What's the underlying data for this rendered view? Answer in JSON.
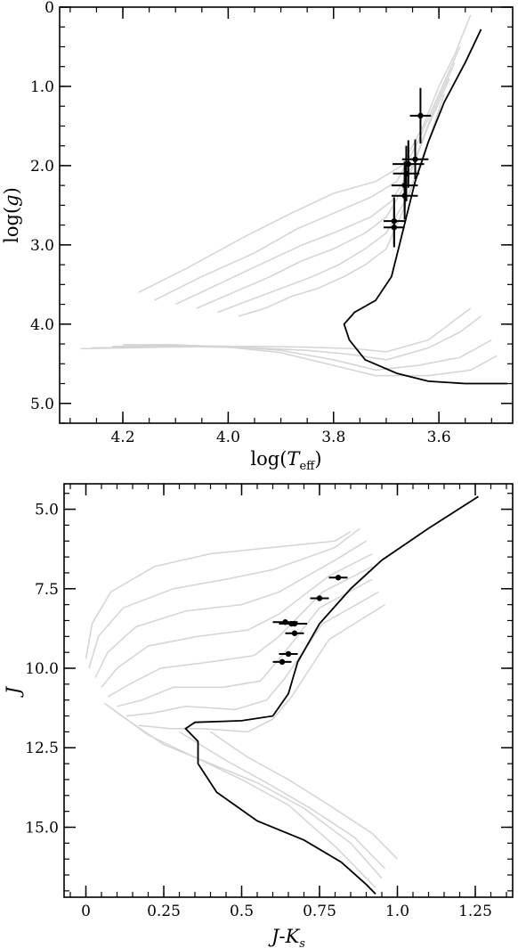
{
  "chart_data": [
    {
      "type": "line",
      "panel": "top",
      "xlabel": "log(Teff)",
      "xlabel_parts": {
        "prefix": "log(",
        "T": "T",
        "sub": "eff",
        "suffix": ")"
      },
      "ylabel": "log(g)",
      "ylabel_parts": {
        "prefix": "log(",
        "g": "g",
        "suffix": ")"
      },
      "xlim": [
        4.32,
        3.46
      ],
      "ylim": [
        5.25,
        0.0
      ],
      "x_ticks": [
        4.2,
        4.0,
        3.8,
        3.6
      ],
      "x_tick_labels": [
        "4.2",
        "4.0",
        "3.8",
        "3.6"
      ],
      "y_ticks": [
        0,
        1.0,
        2.0,
        3.0,
        4.0,
        5.0
      ],
      "y_tick_labels": [
        "0",
        "1.0",
        "2.0",
        "3.0",
        "4.0",
        "5.0"
      ],
      "grey_color": "#d4d4d4",
      "highlight_color": "#000000",
      "grey_isochrones": [
        [
          [
            4.28,
            4.31
          ],
          [
            4.12,
            4.29
          ],
          [
            3.95,
            4.28
          ],
          [
            3.85,
            4.29
          ],
          [
            3.76,
            4.31
          ],
          [
            3.7,
            4.35
          ],
          [
            3.62,
            4.2
          ],
          [
            3.58,
            4.0
          ],
          [
            3.54,
            3.8
          ]
        ],
        [
          [
            4.26,
            4.3
          ],
          [
            4.1,
            4.28
          ],
          [
            3.95,
            4.3
          ],
          [
            3.85,
            4.33
          ],
          [
            3.77,
            4.38
          ],
          [
            3.7,
            4.45
          ],
          [
            3.62,
            4.3
          ],
          [
            3.56,
            4.1
          ],
          [
            3.52,
            3.9
          ]
        ],
        [
          [
            4.22,
            4.28
          ],
          [
            4.1,
            4.27
          ],
          [
            4.0,
            4.28
          ],
          [
            3.9,
            4.33
          ],
          [
            3.8,
            4.45
          ],
          [
            3.72,
            4.58
          ],
          [
            3.64,
            4.52
          ],
          [
            3.56,
            4.42
          ],
          [
            3.5,
            4.2
          ]
        ],
        [
          [
            4.2,
            4.26
          ],
          [
            4.1,
            4.26
          ],
          [
            4.0,
            4.29
          ],
          [
            3.9,
            4.36
          ],
          [
            3.8,
            4.52
          ],
          [
            3.72,
            4.65
          ],
          [
            3.62,
            4.65
          ],
          [
            3.54,
            4.58
          ],
          [
            3.49,
            4.4
          ]
        ],
        [
          [
            4.17,
            3.6
          ],
          [
            4.08,
            3.3
          ],
          [
            3.97,
            2.9
          ],
          [
            3.88,
            2.6
          ],
          [
            3.8,
            2.35
          ],
          [
            3.72,
            2.2
          ],
          [
            3.67,
            2.0
          ],
          [
            3.63,
            1.5
          ],
          [
            3.6,
            1.0
          ],
          [
            3.57,
            0.6
          ],
          [
            3.54,
            0.1
          ]
        ],
        [
          [
            4.14,
            3.7
          ],
          [
            4.05,
            3.4
          ],
          [
            3.95,
            3.1
          ],
          [
            3.87,
            2.8
          ],
          [
            3.8,
            2.6
          ],
          [
            3.73,
            2.4
          ],
          [
            3.68,
            2.2
          ],
          [
            3.64,
            1.7
          ],
          [
            3.6,
            1.1
          ],
          [
            3.56,
            0.5
          ]
        ],
        [
          [
            4.1,
            3.75
          ],
          [
            4.02,
            3.5
          ],
          [
            3.94,
            3.25
          ],
          [
            3.86,
            3.0
          ],
          [
            3.8,
            2.85
          ],
          [
            3.73,
            2.65
          ],
          [
            3.69,
            2.45
          ],
          [
            3.65,
            2.0
          ],
          [
            3.61,
            1.3
          ],
          [
            3.57,
            0.7
          ]
        ],
        [
          [
            4.06,
            3.8
          ],
          [
            3.99,
            3.6
          ],
          [
            3.92,
            3.4
          ],
          [
            3.86,
            3.2
          ],
          [
            3.8,
            3.05
          ],
          [
            3.74,
            2.85
          ],
          [
            3.7,
            2.65
          ],
          [
            3.66,
            2.2
          ],
          [
            3.62,
            1.5
          ],
          [
            3.58,
            0.9
          ]
        ],
        [
          [
            4.02,
            3.85
          ],
          [
            3.96,
            3.7
          ],
          [
            3.9,
            3.55
          ],
          [
            3.84,
            3.4
          ],
          [
            3.79,
            3.25
          ],
          [
            3.74,
            3.05
          ],
          [
            3.7,
            2.85
          ],
          [
            3.66,
            2.4
          ],
          [
            3.62,
            1.7
          ],
          [
            3.59,
            1.1
          ]
        ],
        [
          [
            3.98,
            3.9
          ],
          [
            3.93,
            3.8
          ],
          [
            3.88,
            3.65
          ],
          [
            3.83,
            3.55
          ],
          [
            3.78,
            3.4
          ],
          [
            3.74,
            3.25
          ],
          [
            3.7,
            3.05
          ],
          [
            3.67,
            2.6
          ],
          [
            3.63,
            1.9
          ],
          [
            3.6,
            1.3
          ]
        ]
      ],
      "highlight_isochrone": [
        [
          3.52,
          0.28
        ],
        [
          3.55,
          0.7
        ],
        [
          3.59,
          1.2
        ],
        [
          3.62,
          1.7
        ],
        [
          3.645,
          2.2
        ],
        [
          3.66,
          2.6
        ],
        [
          3.675,
          3.0
        ],
        [
          3.69,
          3.4
        ],
        [
          3.72,
          3.7
        ],
        [
          3.76,
          3.85
        ],
        [
          3.78,
          4.0
        ],
        [
          3.77,
          4.2
        ],
        [
          3.74,
          4.45
        ],
        [
          3.68,
          4.62
        ],
        [
          3.62,
          4.72
        ],
        [
          3.55,
          4.75
        ],
        [
          3.47,
          4.75
        ]
      ],
      "observations": [
        {
          "x": 3.635,
          "y": 1.37,
          "xerr": 0.02,
          "yerr": 0.35
        },
        {
          "x": 3.645,
          "y": 1.92,
          "xerr": 0.025,
          "yerr": 0.25
        },
        {
          "x": 3.658,
          "y": 1.98,
          "xerr": 0.03,
          "yerr": 0.3
        },
        {
          "x": 3.662,
          "y": 2.1,
          "xerr": 0.025,
          "yerr": 0.35
        },
        {
          "x": 3.665,
          "y": 2.25,
          "xerr": 0.025,
          "yerr": 0.3
        },
        {
          "x": 3.665,
          "y": 2.38,
          "xerr": 0.025,
          "yerr": 0.3
        },
        {
          "x": 3.685,
          "y": 2.7,
          "xerr": 0.02,
          "yerr": 0.3
        },
        {
          "x": 3.685,
          "y": 2.78,
          "xerr": 0.02,
          "yerr": 0.25
        }
      ]
    },
    {
      "type": "line",
      "panel": "bottom",
      "xlabel": "J-Ks",
      "xlabel_parts": {
        "J": "J",
        "dash": "-",
        "K": "K",
        "sub": "s"
      },
      "ylabel": "J",
      "xlim": [
        -0.07,
        1.37
      ],
      "ylim": [
        4.2,
        17.2
      ],
      "x_ticks": [
        0,
        0.25,
        0.5,
        0.75,
        1.0,
        1.25
      ],
      "x_tick_labels": [
        "0",
        "0.25",
        "0.5",
        "0.75",
        "1.0",
        "1.25"
      ],
      "y_ticks": [
        5.0,
        7.5,
        10.0,
        12.5,
        15.0
      ],
      "y_tick_labels": [
        "5.0",
        "7.5",
        "10.0",
        "12.5",
        "15.0"
      ],
      "grey_color": "#d4d4d4",
      "highlight_color": "#000000",
      "grey_isochrones": [
        [
          [
            0.0,
            9.7
          ],
          [
            0.02,
            8.6
          ],
          [
            0.08,
            7.6
          ],
          [
            0.22,
            6.8
          ],
          [
            0.4,
            6.4
          ],
          [
            0.6,
            6.2
          ],
          [
            0.8,
            6.0
          ],
          [
            0.85,
            5.7
          ]
        ],
        [
          [
            0.01,
            10.0
          ],
          [
            0.04,
            9.0
          ],
          [
            0.12,
            8.1
          ],
          [
            0.28,
            7.5
          ],
          [
            0.45,
            7.2
          ],
          [
            0.6,
            6.9
          ],
          [
            0.8,
            6.2
          ],
          [
            0.88,
            5.6
          ]
        ],
        [
          [
            0.03,
            10.3
          ],
          [
            0.07,
            9.5
          ],
          [
            0.16,
            8.7
          ],
          [
            0.32,
            8.2
          ],
          [
            0.5,
            8.0
          ],
          [
            0.62,
            7.6
          ],
          [
            0.8,
            6.6
          ],
          [
            0.9,
            6.0
          ]
        ],
        [
          [
            0.05,
            10.6
          ],
          [
            0.1,
            10.0
          ],
          [
            0.2,
            9.3
          ],
          [
            0.36,
            9.0
          ],
          [
            0.52,
            8.8
          ],
          [
            0.62,
            8.3
          ],
          [
            0.78,
            7.1
          ],
          [
            0.92,
            6.4
          ]
        ],
        [
          [
            0.07,
            10.9
          ],
          [
            0.14,
            10.5
          ],
          [
            0.24,
            10.0
          ],
          [
            0.4,
            9.8
          ],
          [
            0.54,
            9.6
          ],
          [
            0.62,
            9.0
          ],
          [
            0.76,
            7.6
          ],
          [
            0.92,
            6.8
          ]
        ],
        [
          [
            0.1,
            11.2
          ],
          [
            0.18,
            11.0
          ],
          [
            0.28,
            10.6
          ],
          [
            0.44,
            10.6
          ],
          [
            0.56,
            10.4
          ],
          [
            0.63,
            9.6
          ],
          [
            0.75,
            8.1
          ],
          [
            0.92,
            7.2
          ]
        ],
        [
          [
            0.13,
            11.5
          ],
          [
            0.22,
            11.4
          ],
          [
            0.32,
            11.2
          ],
          [
            0.48,
            11.3
          ],
          [
            0.58,
            11.0
          ],
          [
            0.64,
            10.3
          ],
          [
            0.76,
            8.6
          ],
          [
            0.94,
            7.6
          ]
        ],
        [
          [
            0.17,
            11.8
          ],
          [
            0.27,
            11.9
          ],
          [
            0.37,
            11.9
          ],
          [
            0.52,
            12.0
          ],
          [
            0.6,
            11.6
          ],
          [
            0.66,
            10.9
          ],
          [
            0.78,
            9.1
          ],
          [
            0.96,
            8.0
          ]
        ],
        [
          [
            0.06,
            11.1
          ],
          [
            0.2,
            12.1
          ],
          [
            0.35,
            12.8
          ],
          [
            0.5,
            13.5
          ],
          [
            0.65,
            14.3
          ],
          [
            0.8,
            15.6
          ],
          [
            0.93,
            16.9
          ]
        ],
        [
          [
            0.1,
            11.4
          ],
          [
            0.25,
            12.4
          ],
          [
            0.4,
            13.0
          ],
          [
            0.55,
            13.6
          ],
          [
            0.7,
            14.4
          ],
          [
            0.85,
            15.5
          ],
          [
            0.95,
            16.6
          ]
        ],
        [
          [
            0.3,
            12.0
          ],
          [
            0.45,
            12.9
          ],
          [
            0.58,
            13.6
          ],
          [
            0.72,
            14.4
          ],
          [
            0.86,
            15.3
          ],
          [
            0.96,
            16.3
          ]
        ],
        [
          [
            0.4,
            12.0
          ],
          [
            0.52,
            12.8
          ],
          [
            0.65,
            13.5
          ],
          [
            0.78,
            14.3
          ],
          [
            0.92,
            15.2
          ],
          [
            1.0,
            16.0
          ]
        ]
      ],
      "highlight_isochrone": [
        [
          1.26,
          4.6
        ],
        [
          1.1,
          5.6
        ],
        [
          0.95,
          6.6
        ],
        [
          0.85,
          7.5
        ],
        [
          0.75,
          8.6
        ],
        [
          0.68,
          9.8
        ],
        [
          0.65,
          10.8
        ],
        [
          0.6,
          11.5
        ],
        [
          0.5,
          11.65
        ],
        [
          0.35,
          11.7
        ],
        [
          0.32,
          11.9
        ],
        [
          0.36,
          12.3
        ],
        [
          0.36,
          13.0
        ],
        [
          0.42,
          13.9
        ],
        [
          0.55,
          14.8
        ],
        [
          0.7,
          15.4
        ],
        [
          0.82,
          16.1
        ],
        [
          0.9,
          16.8
        ],
        [
          0.93,
          17.1
        ]
      ],
      "observations": [
        {
          "x": 0.81,
          "y": 7.15,
          "xerr": 0.03,
          "yerr": 0.03
        },
        {
          "x": 0.75,
          "y": 7.8,
          "xerr": 0.03,
          "yerr": 0.03
        },
        {
          "x": 0.64,
          "y": 8.55,
          "xerr": 0.04,
          "yerr": 0.03
        },
        {
          "x": 0.67,
          "y": 8.6,
          "xerr": 0.04,
          "yerr": 0.03
        },
        {
          "x": 0.66,
          "y": 8.6,
          "xerr": 0.04,
          "yerr": 0.03
        },
        {
          "x": 0.67,
          "y": 8.9,
          "xerr": 0.03,
          "yerr": 0.03
        },
        {
          "x": 0.65,
          "y": 9.55,
          "xerr": 0.03,
          "yerr": 0.03
        },
        {
          "x": 0.63,
          "y": 9.8,
          "xerr": 0.03,
          "yerr": 0.03
        }
      ]
    }
  ]
}
